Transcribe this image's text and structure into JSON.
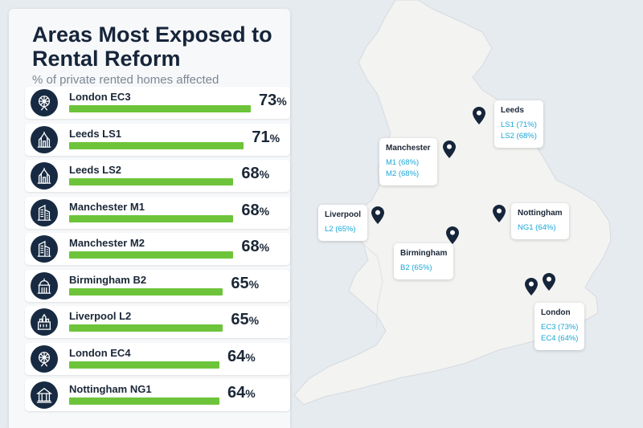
{
  "title": "Areas Most Exposed to Rental Reform",
  "subtitle": "% of private rented homes affected",
  "chart_data": {
    "type": "bar",
    "title": "Areas Most Exposed to Rental Reform",
    "subtitle": "% of private rented homes affected",
    "categories": [
      "London EC3",
      "Leeds LS1",
      "Leeds LS2",
      "Manchester M1",
      "Manchester M2",
      "Birmingham B2",
      "Liverpool L2",
      "London EC4",
      "Nottingham NG1"
    ],
    "values": [
      73,
      71,
      68,
      68,
      68,
      65,
      65,
      64,
      64
    ],
    "unit": "%"
  },
  "rows": [
    {
      "label": "London EC3",
      "value_text": "73",
      "icon": "ferris-wheel-icon"
    },
    {
      "label": "Leeds LS1",
      "value_text": "71",
      "icon": "town-hall-icon"
    },
    {
      "label": "Leeds LS2",
      "value_text": "68",
      "icon": "town-hall-icon"
    },
    {
      "label": "Manchester M1",
      "value_text": "68",
      "icon": "tower-block-icon"
    },
    {
      "label": "Manchester M2",
      "value_text": "68",
      "icon": "tower-block-icon"
    },
    {
      "label": "Birmingham B2",
      "value_text": "65",
      "icon": "domed-building-icon"
    },
    {
      "label": "Liverpool L2",
      "value_text": "65",
      "icon": "liver-building-icon"
    },
    {
      "label": "London EC4",
      "value_text": "64",
      "icon": "ferris-wheel-icon"
    },
    {
      "label": "Nottingham NG1",
      "value_text": "64",
      "icon": "council-house-icon"
    }
  ],
  "percent_symbol": "%",
  "map": {
    "callouts": [
      {
        "key": "leeds",
        "name": "Leeds",
        "lines": [
          "LS1 (71%)",
          "LS2 (68%)"
        ]
      },
      {
        "key": "manchester",
        "name": "Manchester",
        "lines": [
          "M1 (68%)",
          "M2 (68%)"
        ]
      },
      {
        "key": "liverpool",
        "name": "Liverpool",
        "lines": [
          "L2 (65%)"
        ]
      },
      {
        "key": "nottingham",
        "name": "Nottingham",
        "lines": [
          "NG1 (64%)"
        ]
      },
      {
        "key": "birmingham",
        "name": "Birmingham",
        "lines": [
          "B2 (65%)"
        ]
      },
      {
        "key": "london",
        "name": "London",
        "lines": [
          "EC3 (73%)",
          "EC4 (64%)"
        ]
      }
    ]
  },
  "colors": {
    "bar": "#6dc43a",
    "icon_bg": "#172a42",
    "callout_text": "#1aa6d6",
    "land": "#f3f3f2",
    "sea": "#e6ebf0",
    "pin": "#16253a"
  }
}
